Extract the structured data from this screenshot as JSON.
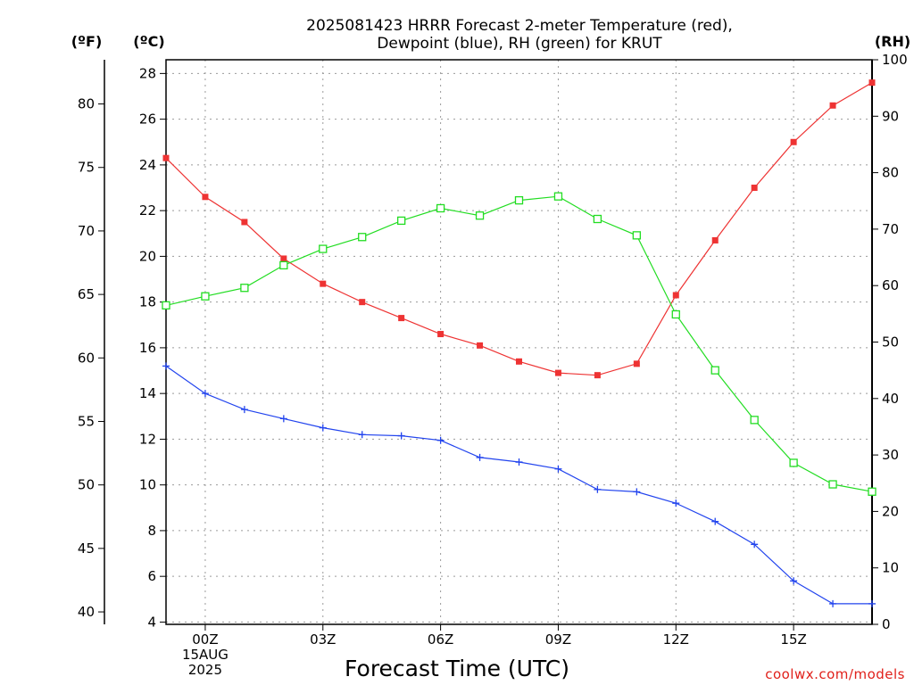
{
  "chart_data": {
    "type": "line",
    "title_lines": [
      "2025081423 HRRR Forecast 2-meter Temperature (red),",
      "Dewpoint (blue), RH (green) for KRUT"
    ],
    "xlabel": "Forecast Time (UTC)",
    "credit": "coolwx.com/models",
    "x_ticks": [
      {
        "hour": 0,
        "lines": [
          "00Z",
          "15AUG",
          "2025"
        ]
      },
      {
        "hour": 3,
        "lines": [
          "03Z"
        ]
      },
      {
        "hour": 6,
        "lines": [
          "06Z"
        ]
      },
      {
        "hour": 9,
        "lines": [
          "09Z"
        ]
      },
      {
        "hour": 12,
        "lines": [
          "12Z"
        ]
      },
      {
        "hour": 15,
        "lines": [
          "15Z"
        ]
      }
    ],
    "xlim": [
      -1,
      17
    ],
    "x": [
      -1,
      0,
      1,
      2,
      3,
      4,
      5,
      6,
      7,
      8,
      9,
      10,
      11,
      12,
      13,
      14,
      15,
      16,
      17
    ],
    "axes": {
      "celsius": {
        "unit": "(ºC)",
        "ylim": [
          3.9,
          28.6
        ],
        "ticks": [
          4,
          6,
          8,
          10,
          12,
          14,
          16,
          18,
          20,
          22,
          24,
          26,
          28
        ]
      },
      "fahrenheit": {
        "unit": "(ºF)",
        "ticks": [
          40,
          45,
          50,
          55,
          60,
          65,
          70,
          75,
          80
        ]
      },
      "rh": {
        "unit": "(RH)",
        "ylim": [
          0,
          100
        ],
        "ticks": [
          0,
          10,
          20,
          30,
          40,
          50,
          60,
          70,
          80,
          90,
          100
        ]
      }
    },
    "grid": true,
    "series": [
      {
        "name": "Temperature",
        "axis": "celsius",
        "color": "#ee3333",
        "marker": "filled-square",
        "values": [
          24.3,
          22.6,
          21.5,
          19.9,
          18.8,
          18.0,
          17.3,
          16.6,
          16.1,
          15.4,
          14.9,
          14.8,
          15.3,
          18.3,
          20.7,
          23.0,
          25.0,
          26.6,
          27.6
        ]
      },
      {
        "name": "Dewpoint",
        "axis": "celsius",
        "color": "#2244ee",
        "marker": "plus",
        "values": [
          15.2,
          14.0,
          13.3,
          12.9,
          12.5,
          12.2,
          12.15,
          11.95,
          11.2,
          11.0,
          10.7,
          9.8,
          9.7,
          9.2,
          8.4,
          7.4,
          5.8,
          4.8,
          4.8
        ]
      },
      {
        "name": "RH",
        "axis": "rh",
        "color": "#22dd22",
        "marker": "open-square",
        "values": [
          56.5,
          58.1,
          59.6,
          63.6,
          66.5,
          68.6,
          71.5,
          73.7,
          72.4,
          75.1,
          75.8,
          71.8,
          68.9,
          54.9,
          45.0,
          36.2,
          28.6,
          24.8,
          23.5
        ]
      }
    ]
  }
}
